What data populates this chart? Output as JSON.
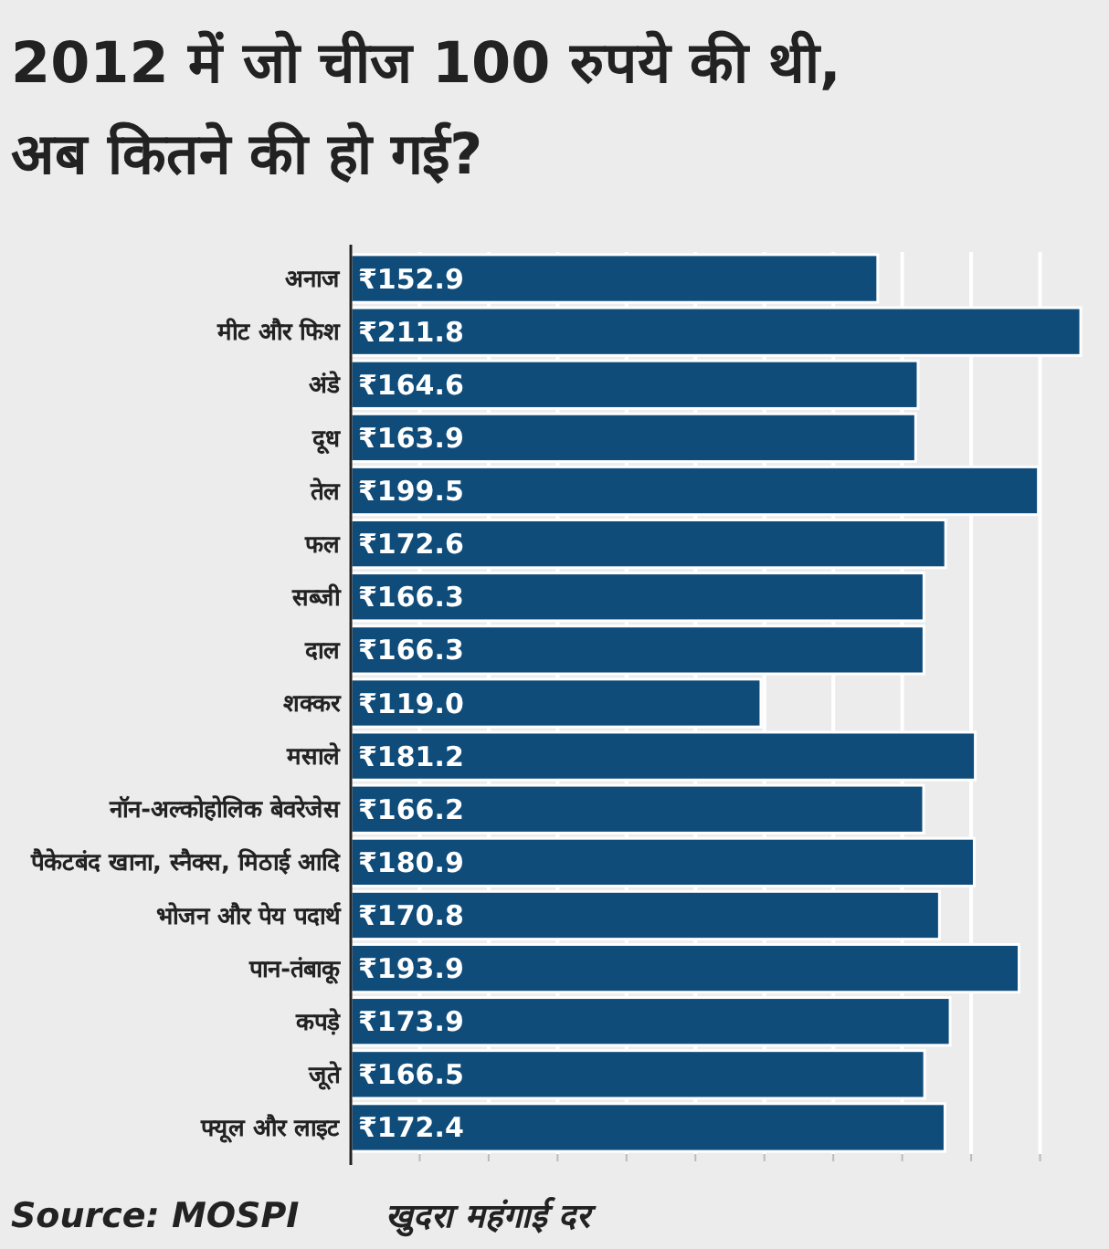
{
  "chart_data": {
    "type": "bar",
    "orientation": "horizontal",
    "title": "2012 में जो चीज 100 रुपये की थी,\nअब कितने की हो गई?",
    "categories": [
      "अनाज",
      "मीट और फिश",
      "अंडे",
      "दूध",
      "तेल",
      "फल",
      "सब्जी",
      "दाल",
      "शक्कर",
      "मसाले",
      "नॉन-अल्कोहोलिक बेवरेजेस",
      "पैकेटबंद खाना, स्नैक्स, मिठाई आदि",
      "भोजन और पेय पदार्थ",
      "पान-तंबाकू",
      "कपड़े",
      "जूते",
      "फ्यूल और लाइट"
    ],
    "values": [
      152.9,
      211.8,
      164.6,
      163.9,
      199.5,
      172.6,
      166.3,
      166.3,
      119.0,
      181.2,
      166.2,
      180.9,
      170.8,
      193.9,
      173.9,
      166.5,
      172.4
    ],
    "value_labels": [
      "₹152.9",
      "₹211.8",
      "₹164.6",
      "₹163.9",
      "₹199.5",
      "₹172.6",
      "₹166.3",
      "₹166.3",
      "₹119.0",
      "₹181.2",
      "₹166.2",
      "₹180.9",
      "₹170.8",
      "₹193.9",
      "₹173.9",
      "₹166.5",
      "₹172.4"
    ],
    "color": "#0f4c7a",
    "xlim": [
      0,
      220
    ],
    "xticks": [
      {
        "value": 20,
        "label": null
      },
      {
        "value": 40,
        "label": null
      },
      {
        "value": 60,
        "label": null
      },
      {
        "value": 80,
        "label": null
      },
      {
        "value": 100,
        "label": null
      },
      {
        "value": 120,
        "label": null
      },
      {
        "value": 140,
        "label": null
      },
      {
        "value": 160,
        "label": null
      },
      {
        "value": 180,
        "label": null
      },
      {
        "value": 200,
        "label": null
      }
    ],
    "tick_labels": "y",
    "grid": "x",
    "annotations": [
      "Source: MOSPI",
      "खुदरा महंगाई दर"
    ]
  }
}
